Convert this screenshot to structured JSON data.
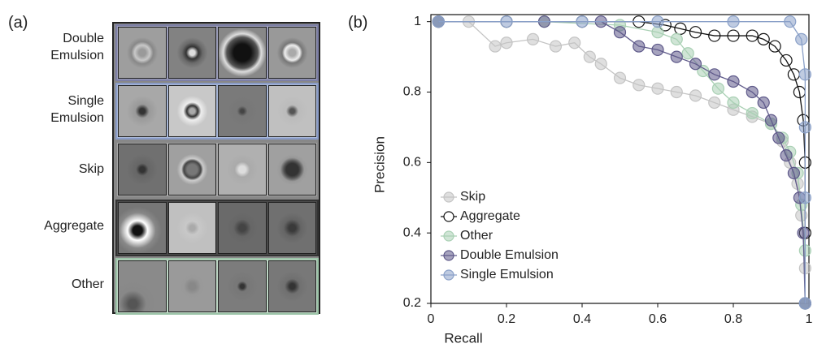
{
  "panel_a": {
    "label": "(a)",
    "rows": [
      {
        "label": "Double Emulsion"
      },
      {
        "label": "Single Emulsion"
      },
      {
        "label": "Skip"
      },
      {
        "label": "Aggregate"
      },
      {
        "label": "Other"
      }
    ]
  },
  "panel_b_label": "(b)",
  "chart_data": {
    "type": "line",
    "x_label": "Recall",
    "y_label": "Precision",
    "xlim": [
      0,
      1
    ],
    "ylim": [
      0.2,
      1.02
    ],
    "xticks": [
      0,
      0.2,
      0.4,
      0.6,
      0.8,
      1
    ],
    "yticks": [
      0.2,
      0.4,
      0.6,
      0.8,
      1
    ],
    "legend": "lower left",
    "series": [
      {
        "name": "Skip",
        "color": "#c4c4c4",
        "filled": true,
        "x": [
          0.02,
          0.1,
          0.17,
          0.2,
          0.27,
          0.33,
          0.38,
          0.42,
          0.45,
          0.5,
          0.55,
          0.6,
          0.65,
          0.7,
          0.75,
          0.8,
          0.85,
          0.9,
          0.93,
          0.95,
          0.97,
          0.98,
          0.99,
          0.99
        ],
        "values": [
          1,
          1,
          0.93,
          0.94,
          0.95,
          0.93,
          0.94,
          0.9,
          0.88,
          0.84,
          0.82,
          0.81,
          0.8,
          0.79,
          0.77,
          0.75,
          0.73,
          0.71,
          0.66,
          0.6,
          0.54,
          0.45,
          0.3,
          0.2
        ]
      },
      {
        "name": "Aggregate",
        "color": "#111111",
        "filled": false,
        "x": [
          0.02,
          0.2,
          0.4,
          0.55,
          0.62,
          0.66,
          0.7,
          0.75,
          0.8,
          0.85,
          0.88,
          0.91,
          0.94,
          0.96,
          0.975,
          0.985,
          0.99,
          0.99,
          0.99
        ],
        "values": [
          1,
          1,
          1,
          1,
          0.99,
          0.98,
          0.97,
          0.96,
          0.96,
          0.96,
          0.95,
          0.93,
          0.89,
          0.85,
          0.8,
          0.72,
          0.6,
          0.4,
          0.2
        ]
      },
      {
        "name": "Other",
        "color": "#a9d0b4",
        "filled": true,
        "x": [
          0.02,
          0.3,
          0.5,
          0.6,
          0.65,
          0.68,
          0.72,
          0.76,
          0.8,
          0.85,
          0.9,
          0.93,
          0.95,
          0.97,
          0.98,
          0.99,
          0.99
        ],
        "values": [
          1,
          1,
          0.99,
          0.97,
          0.95,
          0.91,
          0.86,
          0.81,
          0.77,
          0.74,
          0.71,
          0.67,
          0.63,
          0.57,
          0.48,
          0.35,
          0.2
        ]
      },
      {
        "name": "Double Emulsion",
        "color": "#5f5a8a",
        "filled": true,
        "x": [
          0.02,
          0.3,
          0.45,
          0.5,
          0.55,
          0.6,
          0.65,
          0.7,
          0.75,
          0.8,
          0.85,
          0.88,
          0.9,
          0.92,
          0.94,
          0.96,
          0.975,
          0.985,
          0.99
        ],
        "values": [
          1,
          1,
          1,
          0.97,
          0.93,
          0.92,
          0.9,
          0.88,
          0.85,
          0.83,
          0.8,
          0.77,
          0.72,
          0.67,
          0.62,
          0.57,
          0.5,
          0.4,
          0.2
        ]
      },
      {
        "name": "Single Emulsion",
        "color": "#8aa0c8",
        "filled": true,
        "x": [
          0.02,
          0.2,
          0.4,
          0.6,
          0.8,
          0.95,
          0.98,
          0.99,
          0.99,
          0.99,
          0.99
        ],
        "values": [
          1,
          1,
          1,
          1,
          1,
          1,
          0.95,
          0.85,
          0.7,
          0.5,
          0.2
        ]
      }
    ]
  }
}
